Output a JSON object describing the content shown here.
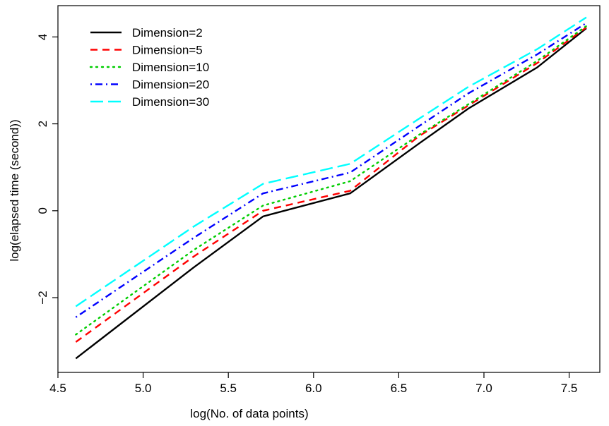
{
  "chart_data": {
    "type": "line",
    "title": "",
    "xlabel": "log(No. of data points)",
    "ylabel": "log(elapsed time (second))",
    "xlim": [
      4.5,
      7.68
    ],
    "ylim": [
      -3.72,
      4.72
    ],
    "x_ticks": [
      4.5,
      5.0,
      5.5,
      6.0,
      6.5,
      7.0,
      7.5
    ],
    "x_tick_labels": [
      "4.5",
      "5.0",
      "5.5",
      "6.0",
      "6.5",
      "7.0",
      "7.5"
    ],
    "y_ticks": [
      -2,
      0,
      2,
      4
    ],
    "y_tick_labels": [
      "−2",
      "0",
      "2",
      "4"
    ],
    "grid": false,
    "legend_position": "top-left",
    "x": [
      4.605,
      5.298,
      5.704,
      6.215,
      6.62,
      6.908,
      7.313,
      7.601
    ],
    "series": [
      {
        "name": "Dimension=2",
        "color": "#000000",
        "dash": "solid",
        "values": [
          -3.4,
          -1.3,
          -0.13,
          0.4,
          1.55,
          2.35,
          3.3,
          4.2
        ]
      },
      {
        "name": "Dimension=5",
        "color": "#ff0000",
        "dash": "dashed",
        "values": [
          -3.02,
          -1.05,
          0.0,
          0.46,
          1.72,
          2.42,
          3.4,
          4.22
        ]
      },
      {
        "name": "Dimension=10",
        "color": "#00cd00",
        "dash": "dotted",
        "values": [
          -2.85,
          -0.9,
          0.12,
          0.68,
          1.75,
          2.45,
          3.45,
          4.25
        ]
      },
      {
        "name": "Dimension=20",
        "color": "#0000ff",
        "dash": "dotdash",
        "values": [
          -2.45,
          -0.62,
          0.4,
          0.88,
          1.95,
          2.7,
          3.6,
          4.32
        ]
      },
      {
        "name": "Dimension=30",
        "color": "#00ffff",
        "dash": "longdash",
        "values": [
          -2.2,
          -0.36,
          0.62,
          1.08,
          2.12,
          2.85,
          3.72,
          4.45
        ]
      }
    ]
  }
}
